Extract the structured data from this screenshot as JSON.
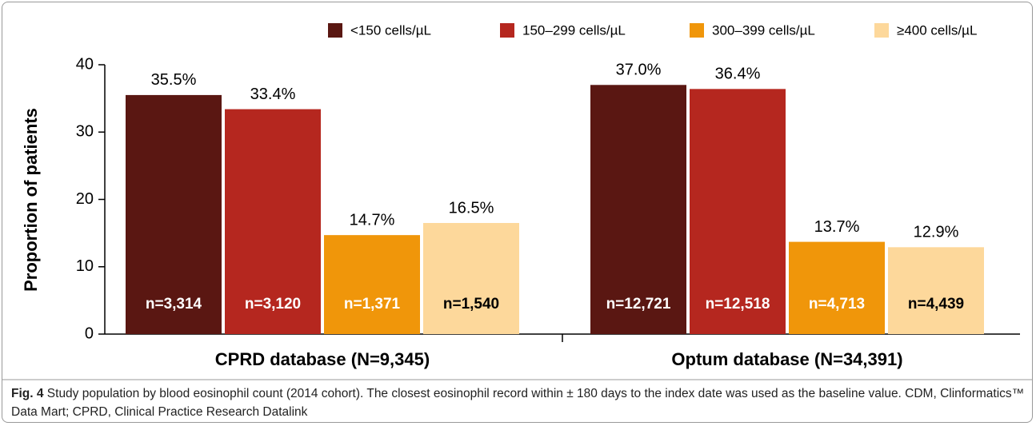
{
  "chart_data": {
    "type": "bar",
    "y_label": "Proportion of patients",
    "categories": [
      "CPRD database (N=9,345)",
      "Optum database (N=34,391)"
    ],
    "series": [
      {
        "name": "<150 cells/µL",
        "color": "#5a1712",
        "values": [
          35.5,
          37.0
        ],
        "value_labels": [
          "35.5%",
          "37.0%"
        ],
        "n_labels": [
          "n=3,314",
          "n=12,721"
        ]
      },
      {
        "name": "150–299 cells/µL",
        "color": "#b5271f",
        "values": [
          33.4,
          36.4
        ],
        "value_labels": [
          "33.4%",
          "36.4%"
        ],
        "n_labels": [
          "n=3,120",
          "n=12,518"
        ]
      },
      {
        "name": "300–399 cells/µL",
        "color": "#f0960a",
        "values": [
          14.7,
          13.7
        ],
        "value_labels": [
          "14.7%",
          "13.7%"
        ],
        "n_labels": [
          "n=1,371",
          "n=4,713"
        ]
      },
      {
        "name": "≥400 cells/µL",
        "color": "#fdd89b",
        "values": [
          16.5,
          12.9
        ],
        "value_labels": [
          "16.5%",
          "12.9%"
        ],
        "n_labels": [
          "n=1,540",
          "n=4,439"
        ]
      }
    ],
    "ylim": [
      0,
      40
    ],
    "yticks": [
      0,
      10,
      20,
      30,
      40
    ]
  },
  "caption": {
    "label": "Fig. 4",
    "text": "Study population by blood eosinophil count (2014 cohort). The closest eosinophil record within ± 180 days to the index date was used as the baseline value. CDM, Clinformatics™ Data Mart; CPRD, Clinical Practice Research Datalink"
  }
}
